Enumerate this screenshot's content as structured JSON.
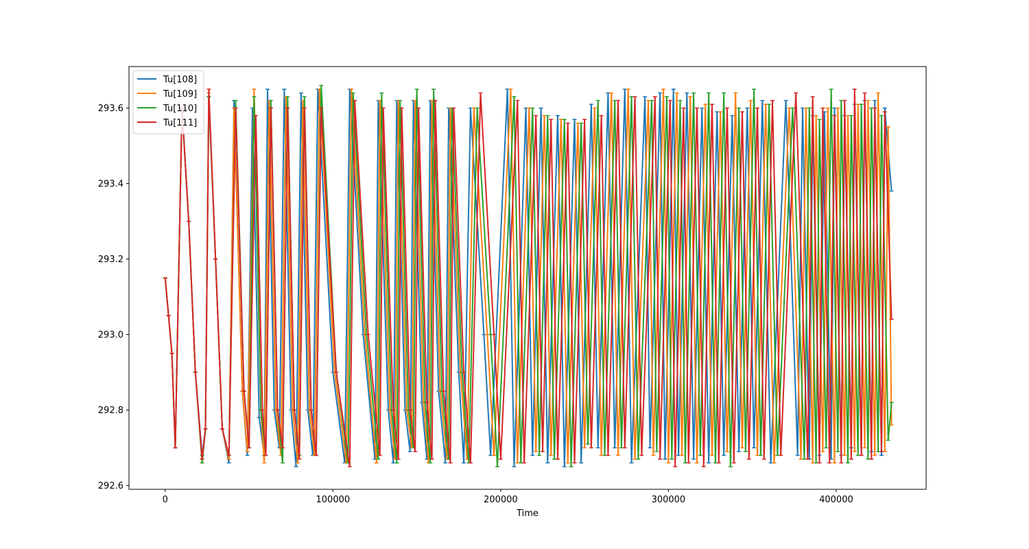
{
  "chart_data": {
    "type": "line",
    "title": "",
    "xlabel": "Time",
    "ylabel": "",
    "xlim": [
      -21600,
      453600
    ],
    "ylim": [
      292.59,
      293.71
    ],
    "xticks": [
      0,
      100000,
      200000,
      300000,
      400000
    ],
    "xtick_labels": [
      "0",
      "100000",
      "200000",
      "300000",
      "400000"
    ],
    "yticks": [
      292.6,
      292.8,
      293.0,
      293.2,
      293.4,
      293.6
    ],
    "ytick_labels": [
      "292.6",
      "292.8",
      "293.0",
      "293.2",
      "293.4",
      "293.6"
    ],
    "grid": false,
    "legend_position": "top-left",
    "markers": "caps",
    "series": [
      {
        "name": "Tu[108]",
        "color": "#1f77b4",
        "x": [
          0,
          2000,
          4000,
          6000,
          10000,
          14000,
          18000,
          22000,
          24000,
          26000,
          30000,
          34000,
          38000,
          41000,
          46000,
          49000,
          52000,
          56000,
          59000,
          61000,
          65000,
          68000,
          71000,
          75000,
          78000,
          81000,
          85000,
          88000,
          91000,
          100000,
          107000,
          110000,
          118000,
          125000,
          127000,
          133000,
          136000,
          138000,
          143000,
          146000,
          148000,
          153000,
          156000,
          158000,
          163000,
          167000,
          169000,
          175000,
          178000,
          182000,
          190000,
          194000,
          204000,
          208000,
          215000,
          219000,
          224000,
          228000,
          234000,
          238000,
          244000,
          248000,
          254000,
          258000,
          264000,
          268000,
          274000,
          278000,
          286000,
          289000,
          295000,
          298000,
          303000,
          306000,
          311000,
          315000,
          320000,
          324000,
          329000,
          333000,
          338000,
          342000,
          347000,
          351000,
          356000,
          361000,
          370000,
          377000,
          380000,
          384000,
          386000,
          390000,
          393000,
          397000,
          399000,
          403000,
          405000,
          409000,
          411000,
          415000,
          417000,
          421000,
          423000,
          427000,
          429000,
          433000
        ],
        "y": [
          293.15,
          293.05,
          292.95,
          292.7,
          293.6,
          293.3,
          292.9,
          292.68,
          292.75,
          293.63,
          293.2,
          292.75,
          292.66,
          293.62,
          292.85,
          292.68,
          293.6,
          292.78,
          292.68,
          293.65,
          292.8,
          292.7,
          293.65,
          292.8,
          292.65,
          293.64,
          292.8,
          292.68,
          293.65,
          292.9,
          292.66,
          293.65,
          293.0,
          292.67,
          293.62,
          292.8,
          292.66,
          293.62,
          292.8,
          292.69,
          293.62,
          292.82,
          292.67,
          293.62,
          292.85,
          292.66,
          293.6,
          292.9,
          292.66,
          293.6,
          293.0,
          292.68,
          293.65,
          292.65,
          293.6,
          292.68,
          293.6,
          292.66,
          293.58,
          292.65,
          293.57,
          292.66,
          293.61,
          292.7,
          293.64,
          292.7,
          293.65,
          292.66,
          293.63,
          292.7,
          293.64,
          292.67,
          293.65,
          292.68,
          293.64,
          292.67,
          293.6,
          292.66,
          293.59,
          292.68,
          293.58,
          292.69,
          293.6,
          292.7,
          293.62,
          292.66,
          293.62,
          292.68,
          293.6,
          292.67,
          293.58,
          292.68,
          293.59,
          292.67,
          293.6,
          292.68,
          293.58,
          292.7,
          293.61,
          292.68,
          293.62,
          292.69,
          293.62,
          292.68,
          293.6,
          293.38
        ]
      },
      {
        "name": "Tu[109]",
        "color": "#ff7f0e",
        "x": [
          0,
          2000,
          4000,
          6000,
          10000,
          14000,
          18000,
          22000,
          24000,
          26000,
          30000,
          34000,
          38000,
          41000,
          46000,
          49000,
          53000,
          57000,
          59000,
          62000,
          66000,
          69000,
          72000,
          76000,
          79000,
          82000,
          86000,
          89000,
          92000,
          101000,
          108000,
          111000,
          119000,
          126000,
          128000,
          134000,
          137000,
          139000,
          144000,
          147000,
          149000,
          154000,
          157000,
          159000,
          164000,
          168000,
          170000,
          176000,
          180000,
          184000,
          192000,
          196000,
          206000,
          210000,
          217000,
          221000,
          226000,
          230000,
          236000,
          240000,
          246000,
          250000,
          256000,
          260000,
          266000,
          270000,
          276000,
          280000,
          288000,
          291000,
          297000,
          300000,
          305000,
          308000,
          313000,
          317000,
          322000,
          326000,
          331000,
          335000,
          340000,
          344000,
          349000,
          353000,
          358000,
          363000,
          372000,
          379000,
          382000,
          386000,
          388000,
          392000,
          395000,
          399000,
          401000,
          405000,
          407000,
          411000,
          413000,
          417000,
          419000,
          423000,
          425000,
          429000,
          431000,
          433000
        ],
        "y": [
          293.15,
          293.05,
          292.95,
          292.7,
          293.6,
          293.3,
          292.9,
          292.66,
          292.75,
          293.64,
          293.2,
          292.75,
          292.67,
          293.6,
          292.85,
          292.69,
          293.65,
          292.8,
          292.66,
          293.62,
          292.8,
          292.68,
          293.63,
          292.8,
          292.66,
          293.62,
          292.8,
          292.68,
          293.65,
          292.9,
          292.66,
          293.65,
          293.0,
          292.66,
          293.62,
          292.8,
          292.67,
          293.62,
          292.8,
          292.7,
          293.62,
          292.82,
          292.66,
          293.62,
          292.85,
          292.67,
          293.6,
          292.9,
          292.67,
          293.6,
          293.0,
          292.68,
          293.65,
          292.66,
          293.6,
          292.69,
          293.58,
          292.68,
          293.57,
          292.66,
          293.56,
          292.7,
          293.6,
          292.68,
          293.64,
          292.68,
          293.65,
          292.67,
          293.62,
          292.68,
          293.65,
          292.66,
          293.64,
          292.68,
          293.63,
          292.66,
          293.61,
          292.68,
          293.59,
          292.69,
          293.64,
          292.7,
          293.62,
          292.68,
          293.61,
          292.66,
          293.6,
          292.67,
          293.6,
          292.66,
          293.58,
          292.69,
          293.6,
          292.66,
          293.6,
          292.68,
          293.58,
          292.69,
          293.61,
          292.7,
          293.62,
          292.68,
          293.64,
          292.69,
          293.55,
          292.76
        ]
      },
      {
        "name": "Tu[110]",
        "color": "#2ca02c",
        "x": [
          0,
          2000,
          4000,
          6000,
          10000,
          14000,
          18000,
          22000,
          24000,
          26000,
          30000,
          34000,
          38000,
          42000,
          47000,
          50000,
          53000,
          57000,
          60000,
          63000,
          67000,
          70000,
          73000,
          77000,
          80000,
          83000,
          87000,
          90000,
          93000,
          102000,
          109000,
          112000,
          120000,
          127000,
          129000,
          135000,
          138000,
          140000,
          145000,
          148000,
          150000,
          155000,
          158000,
          160000,
          165000,
          169000,
          171000,
          177000,
          181000,
          186000,
          194000,
          198000,
          208000,
          212000,
          219000,
          223000,
          228000,
          232000,
          238000,
          242000,
          248000,
          252000,
          258000,
          262000,
          268000,
          272000,
          278000,
          282000,
          290000,
          293000,
          299000,
          302000,
          307000,
          310000,
          315000,
          319000,
          324000,
          328000,
          333000,
          337000,
          342000,
          346000,
          351000,
          355000,
          360000,
          365000,
          374000,
          381000,
          384000,
          388000,
          390000,
          394000,
          397000,
          401000,
          403000,
          407000,
          409000,
          413000,
          415000,
          419000,
          421000,
          425000,
          427000,
          431000,
          433000
        ],
        "y": [
          293.15,
          293.05,
          292.95,
          292.7,
          293.6,
          293.3,
          292.9,
          292.66,
          292.75,
          293.63,
          293.2,
          292.75,
          292.68,
          293.62,
          292.85,
          292.7,
          293.63,
          292.8,
          292.68,
          293.62,
          292.8,
          292.66,
          293.63,
          292.8,
          292.68,
          293.63,
          292.8,
          292.68,
          293.66,
          292.9,
          292.66,
          293.64,
          293.0,
          292.67,
          293.64,
          292.8,
          292.66,
          293.62,
          292.8,
          292.7,
          293.65,
          292.82,
          292.66,
          293.65,
          292.85,
          292.67,
          293.6,
          292.9,
          292.66,
          293.6,
          293.0,
          292.65,
          293.63,
          292.66,
          293.6,
          292.68,
          293.58,
          292.67,
          293.57,
          292.65,
          293.56,
          292.71,
          293.62,
          292.68,
          293.62,
          292.7,
          293.63,
          292.67,
          293.62,
          292.69,
          293.63,
          292.67,
          293.62,
          292.66,
          293.64,
          292.68,
          293.64,
          292.66,
          293.64,
          292.65,
          293.6,
          292.69,
          293.65,
          292.68,
          293.61,
          292.68,
          293.6,
          292.67,
          293.6,
          292.66,
          293.57,
          292.7,
          293.65,
          292.69,
          293.62,
          292.66,
          293.58,
          292.68,
          293.61,
          292.67,
          293.6,
          292.69,
          293.58,
          292.72,
          292.82
        ]
      },
      {
        "name": "Tu[111]",
        "color": "#d62728",
        "x": [
          0,
          2000,
          4000,
          6000,
          10000,
          14000,
          18000,
          22000,
          24000,
          26000,
          30000,
          34000,
          38000,
          42000,
          47000,
          50000,
          54000,
          58000,
          60000,
          63000,
          67000,
          70000,
          73000,
          77000,
          80000,
          83000,
          87000,
          90000,
          93000,
          102000,
          110000,
          113000,
          121000,
          128000,
          130000,
          136000,
          139000,
          141000,
          146000,
          149000,
          151000,
          156000,
          159000,
          161000,
          166000,
          170000,
          172000,
          178000,
          182000,
          188000,
          196000,
          200000,
          210000,
          214000,
          221000,
          225000,
          230000,
          234000,
          240000,
          244000,
          250000,
          254000,
          260000,
          264000,
          270000,
          274000,
          280000,
          284000,
          292000,
          295000,
          301000,
          304000,
          309000,
          312000,
          317000,
          321000,
          326000,
          330000,
          335000,
          339000,
          344000,
          348000,
          353000,
          357000,
          362000,
          367000,
          376000,
          383000,
          386000,
          390000,
          392000,
          396000,
          399000,
          403000,
          405000,
          409000,
          411000,
          415000,
          417000,
          421000,
          423000,
          427000,
          429000,
          433000
        ],
        "y": [
          293.15,
          293.05,
          292.95,
          292.7,
          293.6,
          293.3,
          292.9,
          292.67,
          292.75,
          293.65,
          293.2,
          292.75,
          292.68,
          293.6,
          292.85,
          292.7,
          293.58,
          292.8,
          292.68,
          293.6,
          292.8,
          292.7,
          293.6,
          292.8,
          292.67,
          293.6,
          292.8,
          292.68,
          293.6,
          292.9,
          292.65,
          293.62,
          293.0,
          292.68,
          293.6,
          292.8,
          292.67,
          293.6,
          292.8,
          292.69,
          293.6,
          292.82,
          292.67,
          293.62,
          292.85,
          292.66,
          293.6,
          292.9,
          292.66,
          293.64,
          293.0,
          292.67,
          293.62,
          292.66,
          293.58,
          292.69,
          293.57,
          292.67,
          293.56,
          292.66,
          293.57,
          292.7,
          293.58,
          292.68,
          293.62,
          292.7,
          293.63,
          292.68,
          293.63,
          292.67,
          293.62,
          292.65,
          293.6,
          292.66,
          293.6,
          292.65,
          293.61,
          292.66,
          293.6,
          292.66,
          293.59,
          292.67,
          293.6,
          292.67,
          293.62,
          292.68,
          293.64,
          292.67,
          293.63,
          292.66,
          293.6,
          292.66,
          293.58,
          292.66,
          293.62,
          292.67,
          293.65,
          292.68,
          293.64,
          292.67,
          293.6,
          292.69,
          293.59,
          293.04
        ]
      }
    ]
  }
}
